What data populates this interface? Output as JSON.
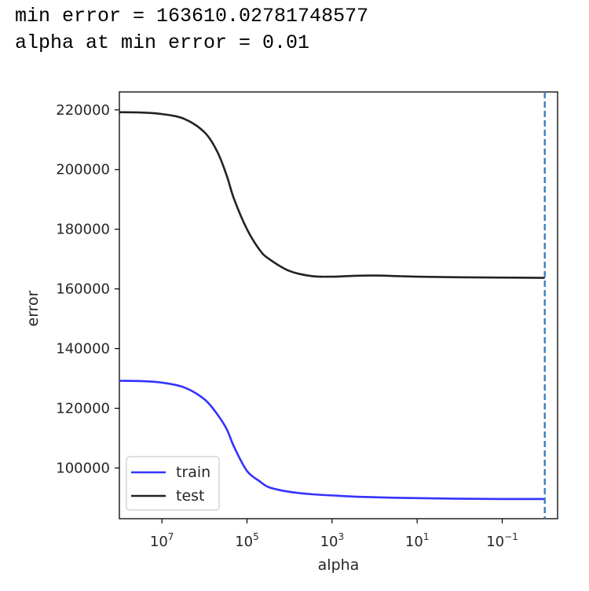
{
  "output": {
    "line1": "min error = 163610.02781748577",
    "line2": "alpha at min error = 0.01"
  },
  "chart_data": {
    "type": "line",
    "title": "",
    "xlabel": "alpha",
    "ylabel": "error",
    "xscale": "log",
    "xaxis_reversed": true,
    "xlim": [
      100000000,
      0.005
    ],
    "ylim": [
      83000,
      226000
    ],
    "grid": false,
    "legend_position": "lower-left",
    "x_ticks": [
      {
        "value": 10000000,
        "base": "10",
        "exp": "7"
      },
      {
        "value": 100000,
        "base": "10",
        "exp": "5"
      },
      {
        "value": 1000,
        "base": "10",
        "exp": "3"
      },
      {
        "value": 10,
        "base": "10",
        "exp": "1"
      },
      {
        "value": 0.1,
        "base": "10",
        "exp": "−1"
      }
    ],
    "y_ticks": [
      {
        "value": 100000,
        "label": "100000"
      },
      {
        "value": 120000,
        "label": "120000"
      },
      {
        "value": 140000,
        "label": "140000"
      },
      {
        "value": 160000,
        "label": "160000"
      },
      {
        "value": 180000,
        "label": "180000"
      },
      {
        "value": 200000,
        "label": "200000"
      },
      {
        "value": 220000,
        "label": "220000"
      }
    ],
    "series": [
      {
        "name": "train",
        "color": "#3333ff",
        "x": [
          100000000,
          30000000,
          10000000,
          3000000,
          1000000,
          500000,
          300000,
          200000,
          100000,
          50000,
          30000,
          10000,
          3000,
          1000,
          300,
          100,
          30,
          10,
          1,
          0.1,
          0.01
        ],
        "y": [
          129200,
          129100,
          128600,
          127000,
          123000,
          118000,
          113000,
          107000,
          99000,
          95500,
          93500,
          92000,
          91200,
          90800,
          90400,
          90200,
          90000,
          89900,
          89700,
          89600,
          89600
        ]
      },
      {
        "name": "test",
        "color": "#222222",
        "x": [
          100000000,
          30000000,
          10000000,
          3000000,
          1000000,
          500000,
          300000,
          200000,
          100000,
          50000,
          30000,
          10000,
          3000,
          1000,
          300,
          100,
          30,
          10,
          1,
          0.1,
          0.01
        ],
        "y": [
          219200,
          219100,
          218600,
          217000,
          212500,
          206000,
          198000,
          190000,
          180000,
          173000,
          170000,
          166000,
          164300,
          164100,
          164400,
          164500,
          164300,
          164100,
          163900,
          163800,
          163700
        ]
      }
    ],
    "annotations": [
      {
        "type": "vline",
        "x": 0.01,
        "style": "dashed",
        "color": "#3b7ebf"
      }
    ]
  }
}
